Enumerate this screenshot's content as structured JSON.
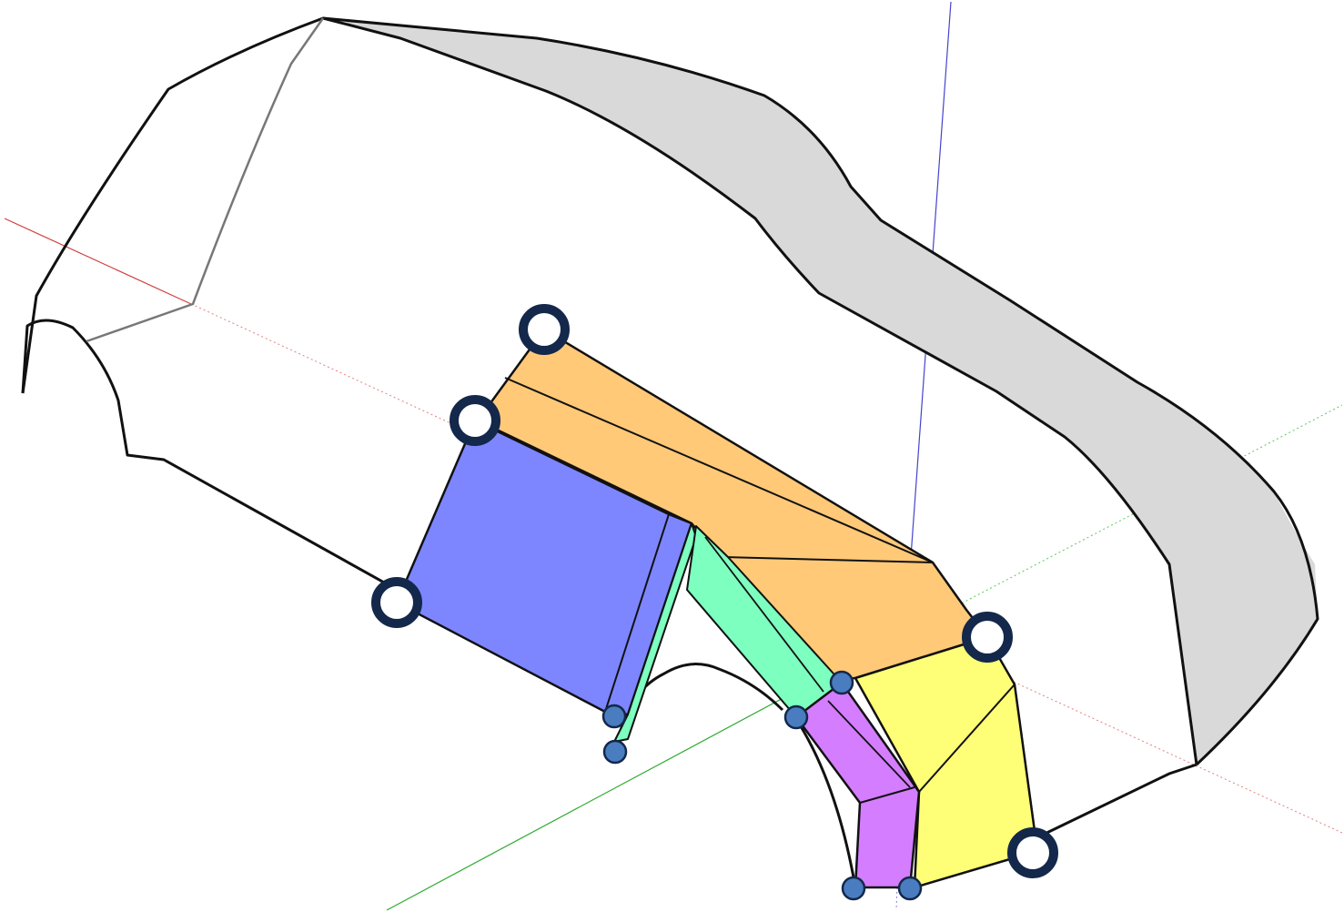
{
  "colors": {
    "background": "#ffffff",
    "outline": "#111111",
    "roof_fill": "#d9d9d9",
    "axis_red": "#d04040",
    "axis_green": "#2faa2f",
    "axis_blue": "#4444cc",
    "orange_panel": "#ffc978",
    "blue_panel": "#7d86ff",
    "green_panel": "#7dffc0",
    "purple_panel": "#d47dff",
    "yellow_panel": "#ffff77",
    "handle_ring": "#13284a",
    "handle_small": "#4a7cc0"
  },
  "icons": {
    "large_handle": "open-circle-handle-icon",
    "small_handle": "filled-circle-vertex-icon"
  }
}
